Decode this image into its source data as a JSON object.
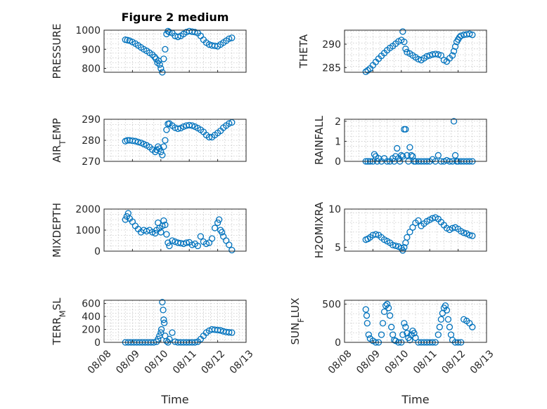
{
  "chart_data": [
    {
      "type": "scatter",
      "title": "Figure 2 medium",
      "ylabel": "PRESSURE",
      "xlabel": "",
      "xlim": [
        "08/08",
        "08/13"
      ],
      "xticks": [
        "08/08",
        "08/09",
        "08/10",
        "08/11",
        "08/12",
        "08/13"
      ],
      "ylim": [
        780,
        1000
      ],
      "yticks": [
        800,
        900,
        1000
      ],
      "grid": true,
      "series": [
        {
          "x": [
            0.75,
            0.82,
            0.9,
            1.0,
            1.1,
            1.2,
            1.3,
            1.4,
            1.5,
            1.6,
            1.7,
            1.78,
            1.83,
            1.88,
            1.92,
            1.96,
            2.0,
            2.05,
            2.1,
            2.15,
            2.2,
            2.25,
            2.3,
            2.4,
            2.5,
            2.6,
            2.7,
            2.8,
            2.9,
            3.0,
            3.1,
            3.2,
            3.3,
            3.4,
            3.5,
            3.6,
            3.7,
            3.8,
            3.9,
            4.0,
            4.1,
            4.2,
            4.3,
            4.4,
            4.5
          ],
          "y": [
            950,
            948,
            945,
            938,
            930,
            920,
            910,
            900,
            892,
            882,
            872,
            860,
            850,
            830,
            840,
            820,
            800,
            780,
            850,
            900,
            980,
            995,
            990,
            985,
            970,
            965,
            970,
            980,
            990,
            995,
            992,
            990,
            985,
            970,
            950,
            935,
            925,
            920,
            918,
            916,
            925,
            935,
            945,
            955,
            960
          ]
        }
      ]
    },
    {
      "type": "scatter",
      "title": "",
      "ylabel": "THETA",
      "xlabel": "",
      "xlim": [
        "08/08",
        "08/13"
      ],
      "xticks": [
        "08/08",
        "08/09",
        "08/10",
        "08/11",
        "08/12",
        "08/13"
      ],
      "ylim": [
        284,
        293
      ],
      "yticks": [
        285,
        290
      ],
      "grid": true,
      "series": [
        {
          "x": [
            0.75,
            0.82,
            0.9,
            1.0,
            1.1,
            1.2,
            1.3,
            1.4,
            1.5,
            1.6,
            1.7,
            1.8,
            1.9,
            2.0,
            2.05,
            2.1,
            2.15,
            2.2,
            2.3,
            2.4,
            2.5,
            2.6,
            2.7,
            2.8,
            2.9,
            3.0,
            3.1,
            3.2,
            3.3,
            3.4,
            3.5,
            3.6,
            3.7,
            3.8,
            3.85,
            3.9,
            3.95,
            4.0,
            4.05,
            4.1,
            4.2,
            4.3,
            4.4,
            4.5
          ],
          "y": [
            284.1,
            284.4,
            284.8,
            285.5,
            286.2,
            286.9,
            287.5,
            288.1,
            288.7,
            289.2,
            289.6,
            290.1,
            290.6,
            290.9,
            292.7,
            290.5,
            289.0,
            288.3,
            288.0,
            287.6,
            287.2,
            286.8,
            286.6,
            287.0,
            287.4,
            287.6,
            287.8,
            287.9,
            287.8,
            287.6,
            286.6,
            286.3,
            287.0,
            287.6,
            288.5,
            289.5,
            290.5,
            291.0,
            291.5,
            291.8,
            292.0,
            292.1,
            292.2,
            292.0
          ]
        }
      ]
    },
    {
      "type": "scatter",
      "title": "",
      "ylabel": "AIR_TEMP",
      "xlabel": "",
      "xlim": [
        "08/08",
        "08/13"
      ],
      "xticks": [
        "08/08",
        "08/09",
        "08/10",
        "08/11",
        "08/12",
        "08/13"
      ],
      "ylim": [
        270,
        290
      ],
      "yticks": [
        270,
        280,
        290
      ],
      "grid": true,
      "series": [
        {
          "x": [
            0.75,
            0.82,
            0.9,
            1.0,
            1.1,
            1.2,
            1.3,
            1.4,
            1.5,
            1.6,
            1.7,
            1.8,
            1.85,
            1.9,
            1.95,
            2.0,
            2.05,
            2.1,
            2.15,
            2.2,
            2.25,
            2.3,
            2.4,
            2.5,
            2.6,
            2.7,
            2.8,
            2.9,
            3.0,
            3.1,
            3.2,
            3.3,
            3.4,
            3.5,
            3.6,
            3.7,
            3.8,
            3.9,
            4.0,
            4.1,
            4.2,
            4.3,
            4.4,
            4.5
          ],
          "y": [
            279.6,
            280.0,
            280.0,
            279.8,
            279.6,
            279.2,
            278.8,
            278.2,
            277.6,
            276.8,
            275.6,
            274.5,
            275.5,
            277.0,
            276.0,
            274.5,
            273.0,
            277.0,
            280.0,
            285.0,
            287.8,
            288.0,
            287.0,
            286.0,
            285.5,
            285.8,
            286.5,
            287.0,
            287.2,
            287.0,
            286.5,
            285.8,
            285.0,
            284.0,
            282.5,
            281.5,
            281.5,
            282.5,
            283.5,
            284.5,
            286.0,
            287.0,
            288.0,
            288.5
          ]
        }
      ]
    },
    {
      "type": "scatter",
      "title": "",
      "ylabel": "RAINFALL",
      "xlabel": "",
      "xlim": [
        "08/08",
        "08/13"
      ],
      "xticks": [
        "08/08",
        "08/09",
        "08/10",
        "08/11",
        "08/12",
        "08/13"
      ],
      "ylim": [
        0,
        2.1
      ],
      "yticks": [
        0,
        1,
        2
      ],
      "grid": true,
      "series": [
        {
          "x": [
            0.75,
            0.82,
            0.9,
            1.0,
            1.05,
            1.1,
            1.15,
            1.2,
            1.3,
            1.4,
            1.5,
            1.6,
            1.7,
            1.75,
            1.8,
            1.85,
            1.9,
            1.95,
            2.0,
            2.05,
            2.1,
            2.15,
            2.2,
            2.25,
            2.3,
            2.35,
            2.4,
            2.45,
            2.5,
            2.6,
            2.7,
            2.8,
            2.9,
            3.0,
            3.1,
            3.2,
            3.3,
            3.4,
            3.5,
            3.6,
            3.7,
            3.8,
            3.85,
            3.9,
            3.95,
            4.0,
            4.1,
            4.2,
            4.3,
            4.4,
            4.5
          ],
          "y": [
            0,
            0,
            0,
            0,
            0.35,
            0.25,
            0,
            0.15,
            0,
            0.15,
            0,
            0,
            0.15,
            0,
            0.25,
            0.65,
            0.15,
            0,
            0.3,
            0.25,
            1.6,
            1.6,
            0.3,
            0,
            0.7,
            0.3,
            0.25,
            0,
            0,
            0,
            0,
            0,
            0,
            0,
            0.1,
            0,
            0.3,
            0,
            0,
            0.05,
            0,
            0,
            2.0,
            0.3,
            0,
            0,
            0,
            0,
            0,
            0,
            0
          ]
        }
      ]
    },
    {
      "type": "scatter",
      "title": "",
      "ylabel": "MIXDEPTH",
      "xlabel": "",
      "xlim": [
        "08/08",
        "08/13"
      ],
      "xticks": [
        "08/08",
        "08/09",
        "08/10",
        "08/11",
        "08/12",
        "08/13"
      ],
      "ylim": [
        0,
        2000
      ],
      "yticks": [
        0,
        1000,
        2000
      ],
      "grid": true,
      "series": [
        {
          "x": [
            0.75,
            0.8,
            0.85,
            0.9,
            1.0,
            1.1,
            1.2,
            1.3,
            1.4,
            1.5,
            1.6,
            1.7,
            1.8,
            1.85,
            1.9,
            1.95,
            2.0,
            2.05,
            2.1,
            2.15,
            2.2,
            2.25,
            2.3,
            2.4,
            2.5,
            2.6,
            2.7,
            2.8,
            2.9,
            3.0,
            3.1,
            3.2,
            3.3,
            3.4,
            3.5,
            3.6,
            3.7,
            3.8,
            3.9,
            4.0,
            4.05,
            4.1,
            4.15,
            4.2,
            4.3,
            4.4,
            4.5
          ],
          "y": [
            1500,
            1650,
            1800,
            1550,
            1400,
            1200,
            1050,
            900,
            1000,
            950,
            1000,
            900,
            850,
            1000,
            1350,
            1100,
            900,
            1200,
            1450,
            1250,
            800,
            400,
            250,
            500,
            450,
            400,
            380,
            350,
            400,
            420,
            300,
            350,
            250,
            700,
            450,
            350,
            400,
            600,
            1100,
            1350,
            1500,
            1000,
            900,
            700,
            500,
            300,
            50
          ]
        }
      ]
    },
    {
      "type": "scatter",
      "title": "",
      "ylabel": "H2OMIXRA",
      "xlabel": "",
      "xlim": [
        "08/08",
        "08/13"
      ],
      "xticks": [
        "08/08",
        "08/09",
        "08/10",
        "08/11",
        "08/12",
        "08/13"
      ],
      "ylim": [
        4.5,
        10
      ],
      "yticks": [
        5,
        10
      ],
      "grid": true,
      "series": [
        {
          "x": [
            0.75,
            0.82,
            0.9,
            1.0,
            1.1,
            1.2,
            1.3,
            1.4,
            1.5,
            1.6,
            1.7,
            1.8,
            1.9,
            2.0,
            2.05,
            2.1,
            2.15,
            2.2,
            2.3,
            2.4,
            2.5,
            2.6,
            2.7,
            2.8,
            2.9,
            3.0,
            3.1,
            3.2,
            3.3,
            3.4,
            3.5,
            3.6,
            3.7,
            3.8,
            3.9,
            4.0,
            4.1,
            4.2,
            4.3,
            4.4,
            4.5
          ],
          "y": [
            6.0,
            6.1,
            6.3,
            6.6,
            6.7,
            6.6,
            6.3,
            6.0,
            5.8,
            5.6,
            5.3,
            5.2,
            5.1,
            4.9,
            4.6,
            5.0,
            5.6,
            6.3,
            7.0,
            7.6,
            8.2,
            8.5,
            7.8,
            8.1,
            8.4,
            8.6,
            8.8,
            8.9,
            8.7,
            8.3,
            7.9,
            7.5,
            7.3,
            7.5,
            7.6,
            7.4,
            7.1,
            6.9,
            6.8,
            6.6,
            6.5
          ]
        }
      ]
    },
    {
      "type": "scatter",
      "title": "",
      "ylabel": "TERR_MSL",
      "xlabel": "Time",
      "xlim": [
        "08/08",
        "08/13"
      ],
      "xticks": [
        "08/08",
        "08/09",
        "08/10",
        "08/11",
        "08/12",
        "08/13"
      ],
      "ylim": [
        0,
        650
      ],
      "yticks": [
        0,
        200,
        400,
        600
      ],
      "grid": true,
      "series": [
        {
          "x": [
            0.75,
            0.85,
            0.95,
            1.05,
            1.15,
            1.25,
            1.35,
            1.45,
            1.55,
            1.65,
            1.75,
            1.85,
            1.9,
            1.95,
            2.0,
            2.02,
            2.05,
            2.08,
            2.1,
            2.12,
            2.15,
            2.2,
            2.25,
            2.3,
            2.4,
            2.5,
            2.6,
            2.7,
            2.8,
            2.9,
            3.0,
            3.1,
            3.2,
            3.3,
            3.4,
            3.5,
            3.6,
            3.7,
            3.8,
            3.9,
            4.0,
            4.1,
            4.2,
            4.3,
            4.4,
            4.5
          ],
          "y": [
            0,
            0,
            0,
            0,
            0,
            0,
            0,
            0,
            0,
            0,
            0,
            10,
            50,
            100,
            150,
            200,
            620,
            500,
            350,
            300,
            100,
            20,
            0,
            50,
            150,
            10,
            0,
            0,
            0,
            0,
            0,
            0,
            0,
            10,
            50,
            100,
            150,
            180,
            200,
            195,
            190,
            185,
            170,
            160,
            155,
            150
          ]
        }
      ]
    },
    {
      "type": "scatter",
      "title": "",
      "ylabel": "SUN_FLUX",
      "xlabel": "Time",
      "xlim": [
        "08/08",
        "08/13"
      ],
      "xticks": [
        "08/08",
        "08/09",
        "08/10",
        "08/11",
        "08/12",
        "08/13"
      ],
      "ylim": [
        0,
        550
      ],
      "yticks": [
        0,
        500
      ],
      "grid": true,
      "series": [
        {
          "x": [
            0.75,
            0.78,
            0.8,
            0.85,
            0.9,
            1.0,
            1.1,
            1.2,
            1.3,
            1.35,
            1.4,
            1.45,
            1.5,
            1.55,
            1.6,
            1.65,
            1.7,
            1.75,
            1.8,
            1.9,
            2.0,
            2.05,
            2.1,
            2.15,
            2.2,
            2.25,
            2.3,
            2.35,
            2.4,
            2.45,
            2.5,
            2.6,
            2.7,
            2.8,
            2.9,
            3.0,
            3.1,
            3.2,
            3.3,
            3.35,
            3.4,
            3.45,
            3.5,
            3.55,
            3.6,
            3.65,
            3.7,
            3.75,
            3.8,
            3.9,
            4.0,
            4.1,
            4.2,
            4.3,
            4.4,
            4.5
          ],
          "y": [
            430,
            350,
            250,
            100,
            50,
            20,
            0,
            0,
            100,
            250,
            400,
            480,
            500,
            450,
            350,
            200,
            100,
            30,
            20,
            0,
            0,
            100,
            250,
            200,
            120,
            60,
            30,
            100,
            150,
            120,
            60,
            0,
            0,
            0,
            0,
            0,
            0,
            0,
            100,
            200,
            300,
            380,
            450,
            480,
            420,
            300,
            200,
            100,
            30,
            0,
            0,
            0,
            300,
            280,
            250,
            200
          ]
        }
      ]
    }
  ]
}
